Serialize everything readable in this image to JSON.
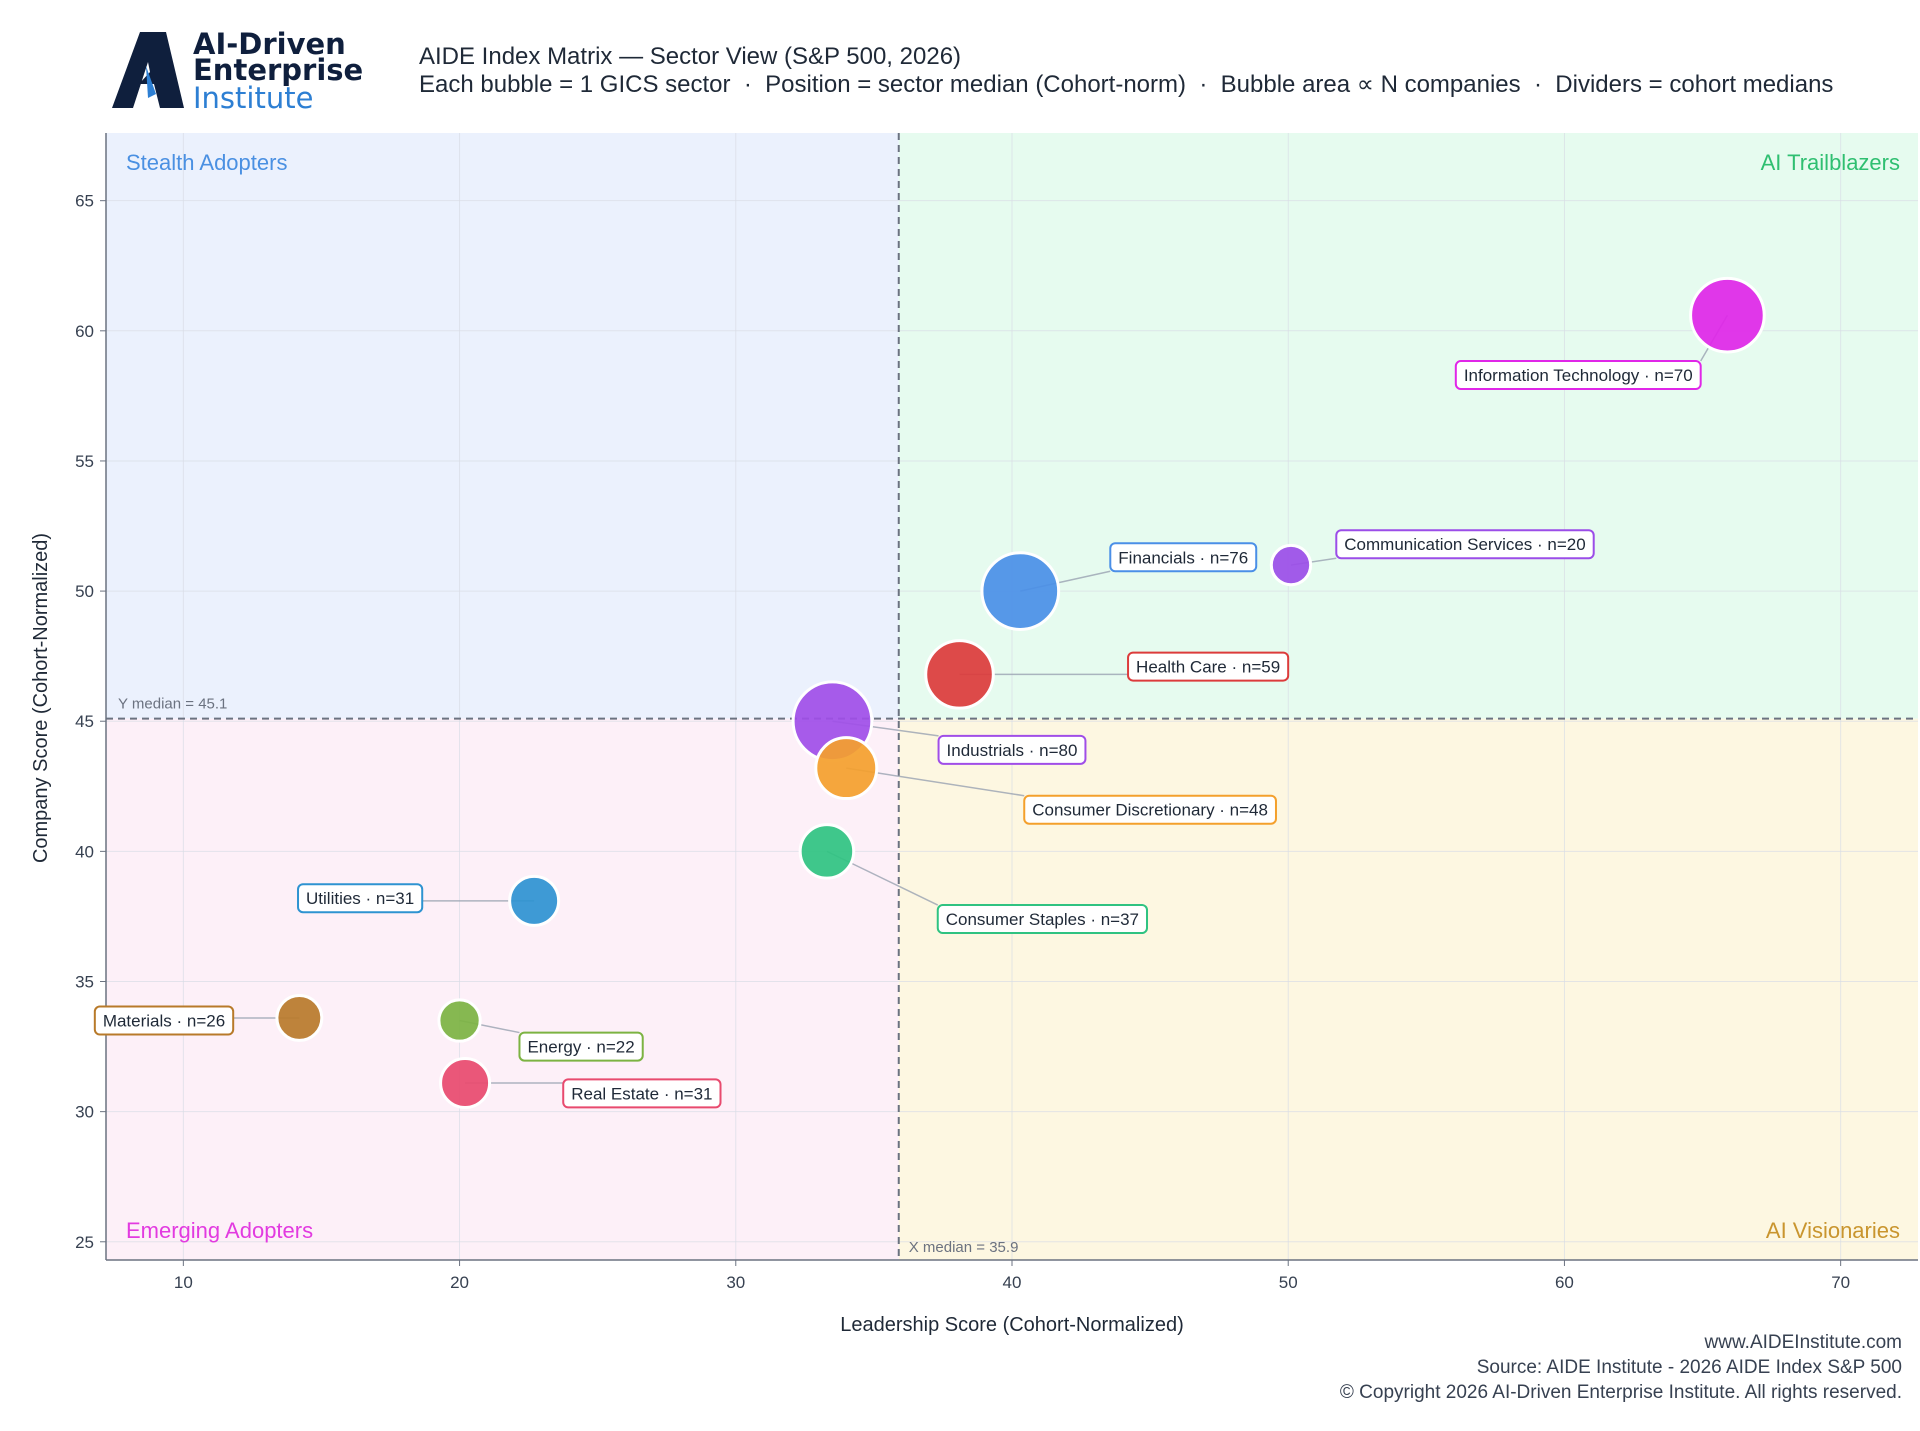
{
  "brand": {
    "line1": "AI-Driven",
    "line2": "Enterprise",
    "line3": "Institute",
    "mark_color": "#0f1f3d",
    "accent_color": "#2d7fd3"
  },
  "header": {
    "title": "AIDE Index Matrix — Sector View (S&P 500, 2026)",
    "subtitle": "Each bubble = 1 GICS sector  ·  Position = sector median (Cohort-norm)  ·  Bubble area ∝ N companies  ·  Dividers = cohort medians"
  },
  "chart_data": {
    "type": "scatter",
    "xlabel": "Leadership Score (Cohort-Normalized)",
    "ylabel": "Company Score (Cohort-Normalized)",
    "xlim": [
      7.2,
      72.8
    ],
    "ylim": [
      24.3,
      67.6
    ],
    "xticks": [
      10,
      20,
      30,
      40,
      50,
      60,
      70
    ],
    "yticks": [
      25,
      30,
      35,
      40,
      45,
      50,
      55,
      60,
      65
    ],
    "grid": true,
    "x_median": 35.9,
    "y_median": 45.1,
    "x_median_label": "X median = 35.9",
    "y_median_label": "Y median = 45.1",
    "quadrants": {
      "top_left": {
        "label": "Stealth Adopters",
        "color": "#4a90e2",
        "fill": "#ebf1fd"
      },
      "top_right": {
        "label": "AI Trailblazers",
        "color": "#2fbf71",
        "fill": "#e6fbef"
      },
      "bottom_left": {
        "label": "Emerging Adopters",
        "color": "#e23be0",
        "fill": "#fdf0f8"
      },
      "bottom_right": {
        "label": "AI Visionaries",
        "color": "#c9952e",
        "fill": "#fdf7e1"
      }
    },
    "series": [
      {
        "name": "Information Technology",
        "n": 70,
        "n_label": "n=70",
        "x": 65.9,
        "y": 60.6,
        "color": "#e026e8",
        "label_at": [
          60.5,
          58.3
        ]
      },
      {
        "name": "Communication Services",
        "n": 20,
        "n_label": "n=20",
        "x": 50.1,
        "y": 51.0,
        "color": "#9b4de8",
        "label_at": [
          56.4,
          51.8
        ]
      },
      {
        "name": "Financials",
        "n": 76,
        "n_label": "n=76",
        "x": 40.3,
        "y": 50.0,
        "color": "#4a8fe7",
        "label_at": [
          46.2,
          51.3
        ]
      },
      {
        "name": "Health Care",
        "n": 59,
        "n_label": "n=59",
        "x": 38.1,
        "y": 46.8,
        "color": "#dc3b3b",
        "label_at": [
          47.1,
          47.1
        ]
      },
      {
        "name": "Industrials",
        "n": 80,
        "n_label": "n=80",
        "x": 33.5,
        "y": 45.0,
        "color": "#a04ee8",
        "label_at": [
          40.0,
          43.9
        ]
      },
      {
        "name": "Consumer Discretionary",
        "n": 48,
        "n_label": "n=48",
        "x": 34.0,
        "y": 43.2,
        "color": "#f4a02c",
        "label_at": [
          45.0,
          41.6
        ]
      },
      {
        "name": "Consumer Staples",
        "n": 37,
        "n_label": "n=37",
        "x": 33.3,
        "y": 40.0,
        "color": "#2fc381",
        "label_at": [
          41.1,
          37.4
        ]
      },
      {
        "name": "Utilities",
        "n": 31,
        "n_label": "n=31",
        "x": 22.7,
        "y": 38.1,
        "color": "#2e93d1",
        "label_at": [
          16.4,
          38.2
        ]
      },
      {
        "name": "Materials",
        "n": 26,
        "n_label": "n=26",
        "x": 14.2,
        "y": 33.6,
        "color": "#b87a2a",
        "label_at": [
          9.3,
          33.5
        ]
      },
      {
        "name": "Energy",
        "n": 22,
        "n_label": "n=22",
        "x": 20.0,
        "y": 33.5,
        "color": "#7cb342",
        "label_at": [
          24.4,
          32.5
        ]
      },
      {
        "name": "Real Estate",
        "n": 31,
        "n_label": "n=31",
        "x": 20.2,
        "y": 31.1,
        "color": "#e84a6e",
        "label_at": [
          26.6,
          30.7
        ]
      }
    ]
  },
  "footer": {
    "website": "www.AIDEInstitute.com",
    "source": "Source: AIDE Institute - 2026 AIDE Index S&P 500",
    "copyright": "© Copyright 2026 AI-Driven Enterprise Institute. All rights reserved."
  }
}
